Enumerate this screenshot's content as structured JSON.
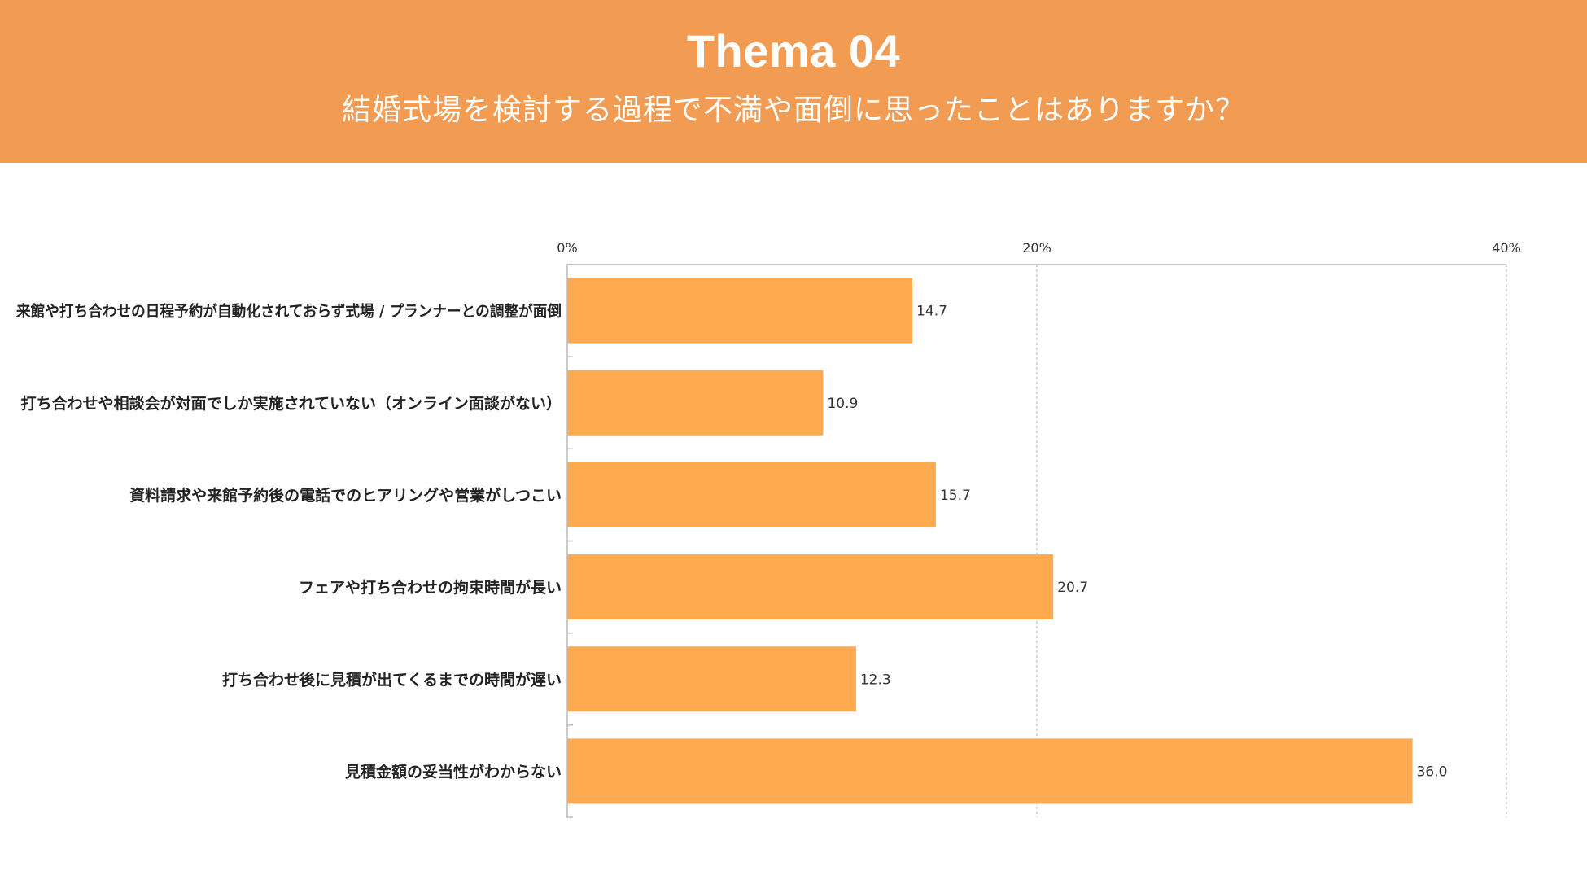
{
  "header": {
    "title": "Thema 04",
    "subtitle": "結婚式場を検討する過程で不満や面倒に思ったことはありますか？"
  },
  "colors": {
    "header_bg": "#F29B52",
    "bar": "#FFAA4F",
    "grid": "#BBBBBB"
  },
  "chart_data": {
    "type": "bar",
    "orientation": "horizontal",
    "title": "",
    "xlabel": "",
    "ylabel": "",
    "xlim": [
      0,
      40
    ],
    "x_ticks": [
      0,
      20,
      40
    ],
    "x_tick_labels": [
      "0%",
      "20%",
      "40%"
    ],
    "grid": true,
    "categories": [
      "来館や打ち合わせの日程予約が自動化されておらず式場 / プランナーとの調整が面倒",
      "打ち合わせや相談会が対面でしか実施されていない（オンライン面談がない）",
      "資料請求や来館予約後の電話でのヒアリングや営業がしつこい",
      "フェアや打ち合わせの拘束時間が長い",
      "打ち合わせ後に見積が出てくるまでの時間が遅い",
      "見積金額の妥当性がわからない"
    ],
    "values": [
      14.7,
      10.9,
      15.7,
      20.7,
      12.3,
      36.0
    ],
    "value_labels": [
      "14.7",
      "10.9",
      "15.7",
      "20.7",
      "12.3",
      "36.0"
    ]
  }
}
